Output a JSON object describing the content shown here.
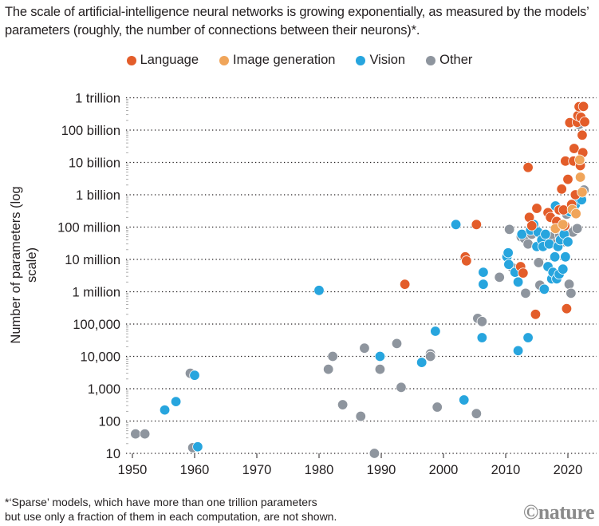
{
  "title": "The scale of artificial-intelligence neural networks is growing exponentially, as measured by the models’ parameters (roughly, the number of connections between their neurons)*.",
  "footnote_line1": "*‘Sparse’ models, which have more than one trillion parameters",
  "footnote_line2": "but use only a fraction of them in each computation, are not shown.",
  "brand": "©nature",
  "colors": {
    "Language": "#E35D2A",
    "Image generation": "#F0A55A",
    "Vision": "#27A5DE",
    "Other": "#8E959E"
  },
  "chart_data": {
    "type": "scatter",
    "title": "The scale of artificial-intelligence neural networks is growing exponentially",
    "xlabel": "",
    "ylabel": "Number of parameters (log scale)",
    "xlim": [
      1948,
      2024
    ],
    "ylim": [
      10,
      1000000000000
    ],
    "yscale": "log",
    "grid": "horizontal-dotted",
    "legend": "top-center",
    "legend_entries": [
      "Language",
      "Image generation",
      "Vision",
      "Other"
    ],
    "x_ticks": [
      1950,
      1960,
      1970,
      1980,
      1990,
      2000,
      2010,
      2020
    ],
    "x_tick_labels": [
      "1950",
      "1960",
      "1970",
      "1980",
      "1990",
      "2000",
      "2010",
      "2020"
    ],
    "y_ticks": [
      10,
      100,
      1000,
      10000,
      100000,
      1000000,
      10000000,
      100000000,
      1000000000,
      10000000000,
      100000000000,
      1000000000000
    ],
    "y_tick_labels": [
      "10",
      "100",
      "1,000",
      "10,000",
      "100,000",
      "1 million",
      "10 million",
      "100 million",
      "1 billion",
      "10 billion",
      "100 billion",
      "1 trillion"
    ],
    "series": [
      {
        "name": "Other",
        "points": [
          [
            1950.5,
            40
          ],
          [
            1952,
            40
          ],
          [
            1959.3,
            3000
          ],
          [
            1959.7,
            15
          ],
          [
            1981.5,
            4000
          ],
          [
            1982.2,
            10000
          ],
          [
            1983.8,
            320
          ],
          [
            1986.7,
            140
          ],
          [
            1987.3,
            18000
          ],
          [
            1988.9,
            10
          ],
          [
            1989.8,
            4000
          ],
          [
            1992.5,
            25000
          ],
          [
            1993.2,
            1100
          ],
          [
            1997.9,
            12000
          ],
          [
            1997.9,
            10000
          ],
          [
            1999,
            270
          ],
          [
            2005.3,
            170
          ],
          [
            2005.5,
            150000
          ],
          [
            2006.2,
            120000
          ],
          [
            2009,
            2800000
          ],
          [
            2010.6,
            85000000
          ],
          [
            2012.5,
            50000000
          ],
          [
            2013,
            45000000
          ],
          [
            2013.2,
            900000
          ],
          [
            2013.6,
            30000000
          ],
          [
            2014.2,
            60000000
          ],
          [
            2011.1,
            5500000
          ],
          [
            2015.5,
            1600000
          ],
          [
            2015.3,
            8000000
          ],
          [
            2016.5,
            45000000
          ],
          [
            2017.2,
            50000000
          ],
          [
            2017.8,
            30000000
          ],
          [
            2018.2,
            120000000
          ],
          [
            2018.7,
            55000000
          ],
          [
            2019.1,
            80000000
          ],
          [
            2019.5,
            35000000
          ],
          [
            2020.2,
            1700000
          ],
          [
            2020.5,
            900000
          ],
          [
            2020.8,
            70000000
          ],
          [
            2021,
            400000000
          ],
          [
            2021.5,
            90000000
          ],
          [
            2021.8,
            150000000000
          ],
          [
            2022.2,
            1000000000
          ],
          [
            2022.6,
            1400000000
          ],
          [
            2019.8,
            250000000
          ]
        ]
      },
      {
        "name": "Vision",
        "points": [
          [
            1955.2,
            220
          ],
          [
            1957,
            400
          ],
          [
            1960,
            2600
          ],
          [
            1960.5,
            16
          ],
          [
            1980,
            1100000
          ],
          [
            1989.8,
            10000
          ],
          [
            1996.5,
            6500
          ],
          [
            1998.7,
            60000
          ],
          [
            2003.3,
            450
          ],
          [
            2002,
            120000000
          ],
          [
            2006.2,
            38000
          ],
          [
            2006.4,
            4000000
          ],
          [
            2006.4,
            1700000
          ],
          [
            2010.2,
            12000000
          ],
          [
            2010.4,
            16000000
          ],
          [
            2010.5,
            7000000
          ],
          [
            2011.5,
            4000000
          ],
          [
            2012,
            15000
          ],
          [
            2012,
            2000000
          ],
          [
            2012.6,
            60000000
          ],
          [
            2013.6,
            38000
          ],
          [
            2014,
            80000000
          ],
          [
            2014.5,
            120000000
          ],
          [
            2015,
            25000000
          ],
          [
            2015.2,
            70000000
          ],
          [
            2015.8,
            40000000
          ],
          [
            2016,
            25000000
          ],
          [
            2016.2,
            1200000
          ],
          [
            2016.4,
            60000000
          ],
          [
            2016.8,
            6000000
          ],
          [
            2017,
            30000000
          ],
          [
            2017.4,
            2500000
          ],
          [
            2017.6,
            4000000
          ],
          [
            2017.9,
            12000000
          ],
          [
            2018,
            450000000
          ],
          [
            2018.2,
            2500000
          ],
          [
            2018.4,
            25000000
          ],
          [
            2018.6,
            3500000
          ],
          [
            2018.8,
            40000000
          ],
          [
            2019.2,
            5000000
          ],
          [
            2019.4,
            60000000
          ],
          [
            2019.6,
            12000000
          ],
          [
            2020,
            35000000
          ],
          [
            2020.3,
            300000000
          ],
          [
            2021.2,
            500000000
          ],
          [
            2022.2,
            700000000
          ]
        ]
      },
      {
        "name": "Language",
        "points": [
          [
            1993.8,
            1700000
          ],
          [
            2003.5,
            12000000
          ],
          [
            2003.7,
            9000000
          ],
          [
            2005.3,
            120000000
          ],
          [
            2012.4,
            6000000
          ],
          [
            2012.8,
            3800000
          ],
          [
            2013.6,
            7000000000
          ],
          [
            2013.8,
            200000000
          ],
          [
            2014.2,
            110000000
          ],
          [
            2014.8,
            200000
          ],
          [
            2015,
            380000000
          ],
          [
            2016.8,
            280000000
          ],
          [
            2017.2,
            200000000
          ],
          [
            2018.2,
            150000000
          ],
          [
            2018.6,
            340000000
          ],
          [
            2019,
            1500000000
          ],
          [
            2019.3,
            340000000
          ],
          [
            2019.5,
            110000000
          ],
          [
            2019.6,
            11000000000
          ],
          [
            2019.8,
            300000
          ],
          [
            2020,
            3000000000
          ],
          [
            2020.3,
            170000000000
          ],
          [
            2020.6,
            500000000
          ],
          [
            2020.9,
            11000000000
          ],
          [
            2021,
            27000000000
          ],
          [
            2021.2,
            1000000000
          ],
          [
            2021.5,
            175000000000
          ],
          [
            2021.6,
            280000000000
          ],
          [
            2021.8,
            530000000000
          ],
          [
            2022,
            8000000000
          ],
          [
            2022.1,
            250000000000
          ],
          [
            2022.3,
            70000000000
          ],
          [
            2022.4,
            20000000000
          ],
          [
            2022.5,
            540000000000
          ],
          [
            2022.7,
            180000000000
          ]
        ]
      },
      {
        "name": "Image generation",
        "points": [
          [
            2018,
            90000000
          ],
          [
            2019.2,
            120000000
          ],
          [
            2020.7,
            350000000
          ],
          [
            2021.3,
            260000000
          ],
          [
            2022,
            3500000000
          ],
          [
            2022.3,
            1200000000
          ],
          [
            2021.9,
            12000000000
          ]
        ]
      }
    ]
  }
}
